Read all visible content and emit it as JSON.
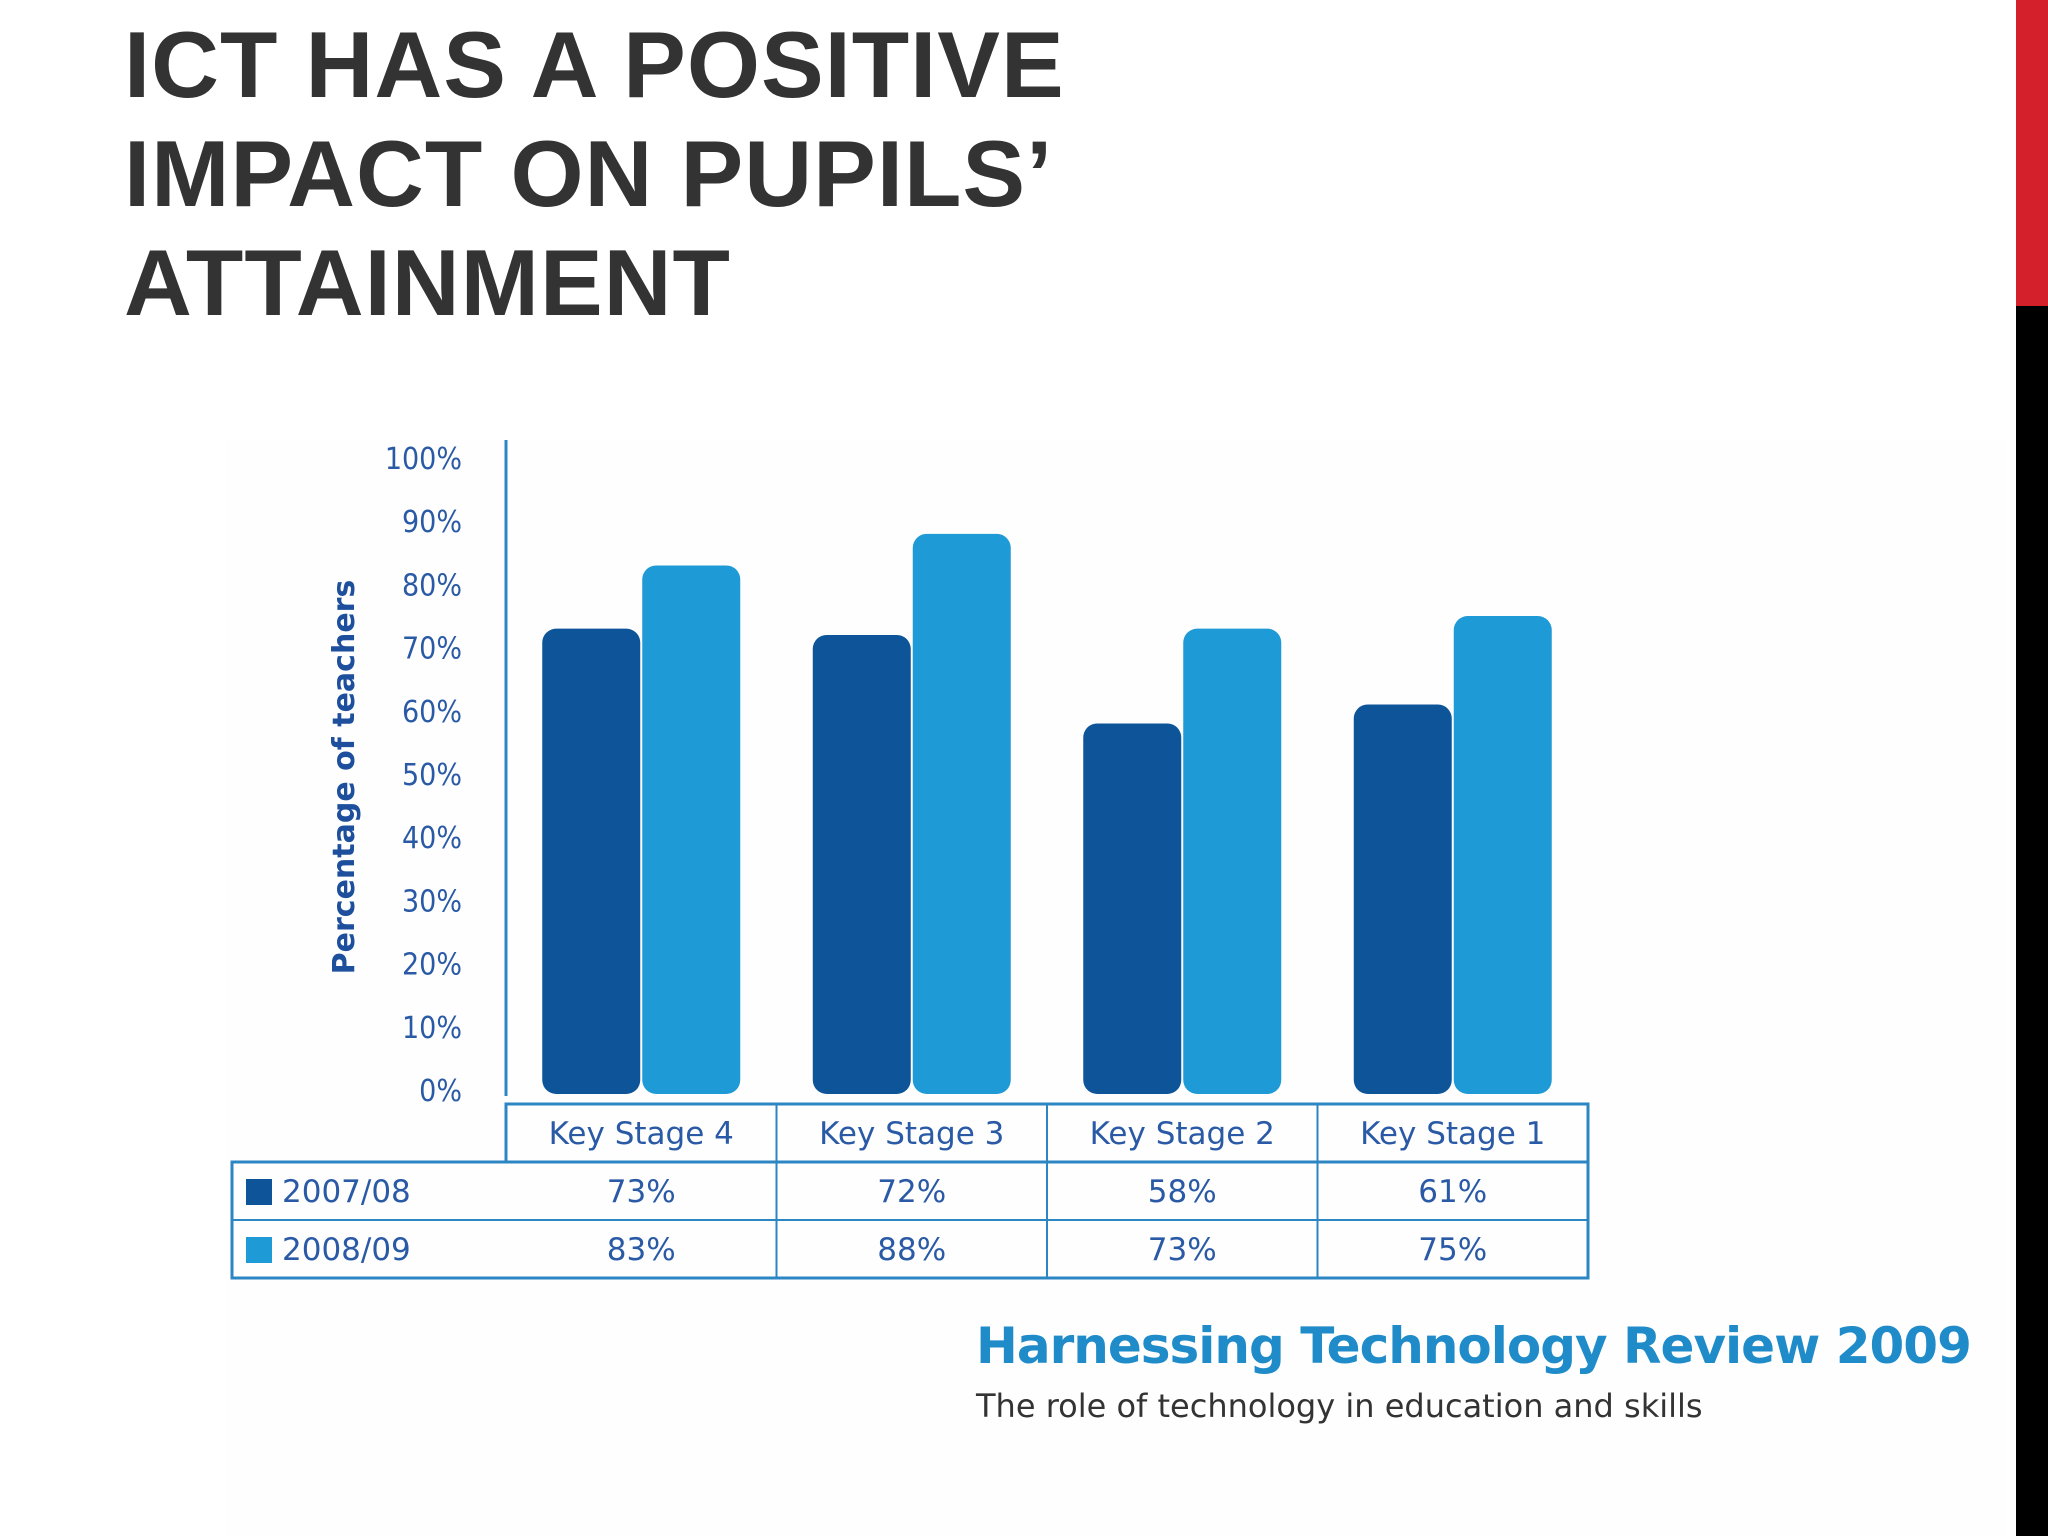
{
  "slide": {
    "title": "ICT HAS A POSITIVE\nIMPACT ON PUPILS’\nATTAINMENT",
    "accent_colors": {
      "red": "#d3202b",
      "black": "#000000"
    }
  },
  "chart_data": {
    "type": "bar",
    "title": "",
    "xlabel": "",
    "ylabel": "Percentage of teachers",
    "ylim": [
      0,
      100
    ],
    "y_ticks": [
      "0%",
      "10%",
      "20%",
      "30%",
      "40%",
      "50%",
      "60%",
      "70%",
      "80%",
      "90%",
      "100%"
    ],
    "grid": false,
    "legend": "table-left",
    "categories": [
      "Key Stage 4",
      "Key Stage 3",
      "Key Stage 2",
      "Key Stage 1"
    ],
    "series": [
      {
        "name": "2007/08",
        "color": "#0d5499",
        "values": [
          73,
          72,
          58,
          61
        ],
        "labels": [
          "73%",
          "72%",
          "58%",
          "61%"
        ]
      },
      {
        "name": "2008/09",
        "color": "#1e9ad6",
        "values": [
          83,
          88,
          73,
          75
        ],
        "labels": [
          "83%",
          "88%",
          "73%",
          "75%"
        ]
      }
    ]
  },
  "source": {
    "title": "Harnessing Technology Review 2009",
    "subtitle": "The role of technology in education and skills"
  }
}
